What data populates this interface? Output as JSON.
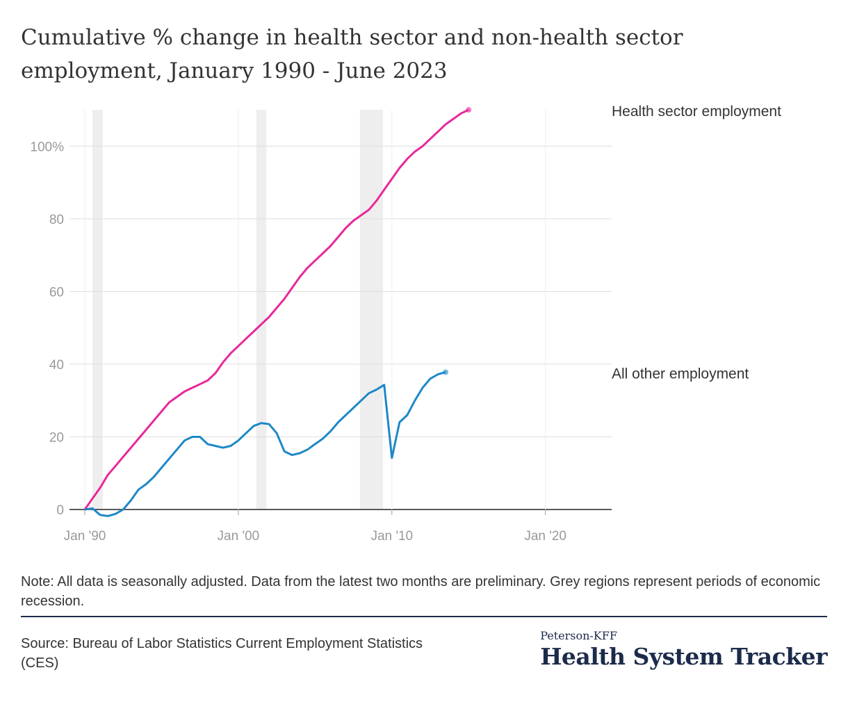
{
  "title": "Cumulative % change in health sector and non-health sector employment, January 1990 - June 2023",
  "note": "Note: All data is seasonally adjusted. Data from the latest two months are preliminary. Grey regions represent periods of economic recession.",
  "source": "Source: Bureau of Labor Statistics Current Employment Statistics (CES)",
  "brand": {
    "top": "Peterson-KFF",
    "main": "Health System Tracker"
  },
  "chart_data": {
    "type": "line",
    "xlim": [
      1990.0,
      2023.5
    ],
    "ylim": [
      0,
      110
    ],
    "grid": true,
    "x_ticks": [
      {
        "value": 1990,
        "label": "Jan '90"
      },
      {
        "value": 2000,
        "label": "Jan '00"
      },
      {
        "value": 2010,
        "label": "Jan '10"
      },
      {
        "value": 2020,
        "label": "Jan '20"
      }
    ],
    "y_ticks": [
      {
        "value": 0,
        "label": "0"
      },
      {
        "value": 20,
        "label": "20"
      },
      {
        "value": 40,
        "label": "40"
      },
      {
        "value": 60,
        "label": "60"
      },
      {
        "value": 80,
        "label": "80"
      },
      {
        "value": 100,
        "label": "100%"
      }
    ],
    "recessions": [
      [
        1990.5,
        1991.17
      ],
      [
        2001.17,
        2001.83
      ],
      [
        2007.92,
        2009.42
      ]
    ],
    "series": [
      {
        "name": "Health sector employment",
        "color": "#e8289b",
        "points": [
          [
            1990.0,
            0
          ],
          [
            1990.5,
            3
          ],
          [
            1991.0,
            6
          ],
          [
            1991.5,
            9.5
          ],
          [
            1992.0,
            12
          ],
          [
            1992.5,
            14.5
          ],
          [
            1993.0,
            17
          ],
          [
            1993.5,
            19.5
          ],
          [
            1994.0,
            22
          ],
          [
            1994.5,
            24.5
          ],
          [
            1995.0,
            27
          ],
          [
            1995.5,
            29.5
          ],
          [
            1996.0,
            31
          ],
          [
            1996.5,
            32.5
          ],
          [
            1997.0,
            33.5
          ],
          [
            1997.5,
            34.5
          ],
          [
            1998.0,
            35.5
          ],
          [
            1998.5,
            37.5
          ],
          [
            1999.0,
            40.5
          ],
          [
            1999.5,
            43
          ],
          [
            2000.0,
            45
          ],
          [
            2000.5,
            47
          ],
          [
            2001.0,
            49
          ],
          [
            2001.5,
            51
          ],
          [
            2002.0,
            53
          ],
          [
            2002.5,
            55.5
          ],
          [
            2003.0,
            58
          ],
          [
            2003.5,
            61
          ],
          [
            2004.0,
            64
          ],
          [
            2004.5,
            66.5
          ],
          [
            2005.0,
            68.5
          ],
          [
            2005.5,
            70.5
          ],
          [
            2006.0,
            72.5
          ],
          [
            2006.5,
            75
          ],
          [
            2007.0,
            77.5
          ],
          [
            2007.5,
            79.5
          ],
          [
            2008.0,
            81
          ],
          [
            2008.5,
            82.5
          ],
          [
            2009.0,
            85
          ],
          [
            2009.5,
            88
          ],
          [
            2010.0,
            91
          ],
          [
            2010.5,
            94
          ],
          [
            2011.0,
            96.5
          ],
          [
            2011.5,
            98.5
          ],
          [
            2012.0,
            100
          ],
          [
            2012.5,
            102
          ],
          [
            2013.0,
            104
          ],
          [
            2013.5,
            106
          ],
          [
            2014.0,
            107.5
          ],
          [
            2014.5,
            109
          ],
          [
            2015.0,
            110
          ]
        ],
        "end_label": "Health sector employment"
      },
      {
        "name": "All other employment",
        "color": "#1e88c8",
        "points": [
          [
            1990.0,
            0
          ],
          [
            1990.5,
            0.3
          ],
          [
            1991.0,
            -1.5
          ],
          [
            1991.5,
            -1.8
          ],
          [
            1992.0,
            -1.2
          ],
          [
            1992.5,
            0
          ],
          [
            1993.0,
            2.5
          ],
          [
            1993.5,
            5.5
          ],
          [
            1994.0,
            7
          ],
          [
            1994.5,
            9
          ],
          [
            1995.0,
            11.5
          ],
          [
            1995.5,
            14
          ],
          [
            1996.0,
            16.5
          ],
          [
            1996.5,
            19
          ],
          [
            1997.0,
            20
          ],
          [
            1997.5,
            20
          ],
          [
            1998.0,
            18
          ],
          [
            1998.5,
            17.5
          ],
          [
            1999.0,
            17
          ],
          [
            1999.5,
            17.5
          ],
          [
            2000.0,
            19
          ],
          [
            2000.5,
            21
          ],
          [
            2001.0,
            23
          ],
          [
            2001.5,
            23.8
          ],
          [
            2002.0,
            23.5
          ],
          [
            2002.5,
            21
          ],
          [
            2003.0,
            16
          ],
          [
            2003.5,
            15
          ],
          [
            2004.0,
            15.5
          ],
          [
            2004.5,
            16.5
          ],
          [
            2005.0,
            18
          ],
          [
            2005.5,
            19.5
          ],
          [
            2006.0,
            21.5
          ],
          [
            2006.5,
            24
          ],
          [
            2007.0,
            26
          ],
          [
            2007.5,
            28
          ],
          [
            2008.0,
            30
          ],
          [
            2008.5,
            32
          ],
          [
            2009.0,
            33
          ],
          [
            2009.5,
            34.3
          ],
          [
            2010.0,
            14.2
          ],
          [
            2010.5,
            24
          ],
          [
            2011.0,
            26
          ],
          [
            2011.5,
            30
          ],
          [
            2012.0,
            33.5
          ],
          [
            2012.5,
            36
          ],
          [
            2013.0,
            37.2
          ],
          [
            2013.5,
            37.8
          ]
        ],
        "end_label": "All other employment"
      }
    ]
  }
}
